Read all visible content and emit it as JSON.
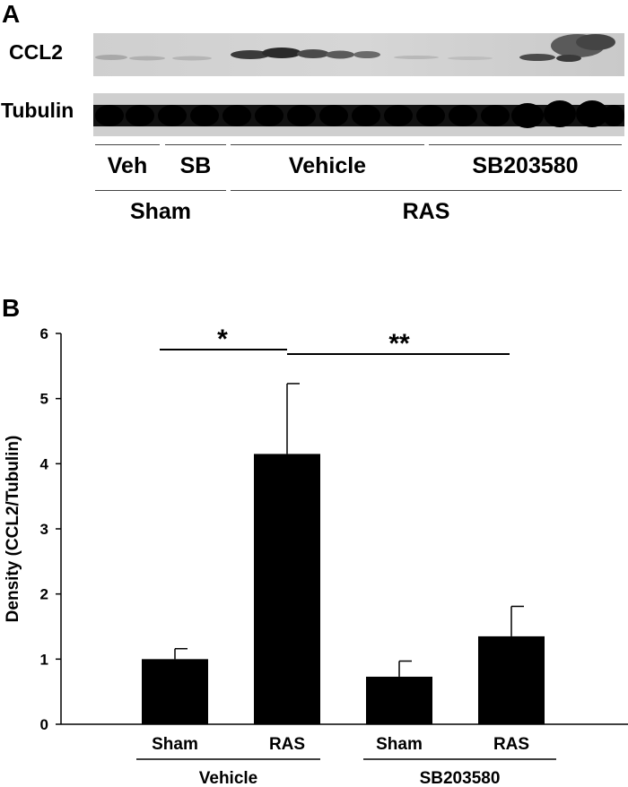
{
  "panel_a": {
    "letter": "A",
    "blot_rows": [
      "CCL2",
      "Tubulin"
    ],
    "lane_groups": [
      "Veh",
      "SB",
      "Vehicle",
      "SB203580"
    ],
    "condition_groups": [
      "Sham",
      "RAS"
    ]
  },
  "panel_b": {
    "letter": "B"
  },
  "chart_data": {
    "type": "bar",
    "ylabel": "Density (CCL2/Tubulin)",
    "ylim": [
      0,
      6
    ],
    "yticks": [
      "0",
      "1",
      "2",
      "3",
      "4",
      "5",
      "6"
    ],
    "categories": [
      "Sham",
      "RAS",
      "Sham",
      "RAS"
    ],
    "groups": [
      "Vehicle",
      "SB203580"
    ],
    "values": [
      1.0,
      4.15,
      0.73,
      1.35
    ],
    "error": [
      0.16,
      1.08,
      0.24,
      0.46
    ],
    "bar_color": "#000000",
    "significance": [
      {
        "label": "*",
        "from": 0,
        "to": 1
      },
      {
        "label": "**",
        "from": 1,
        "to": 3
      }
    ],
    "grid": false,
    "legend": "none"
  }
}
